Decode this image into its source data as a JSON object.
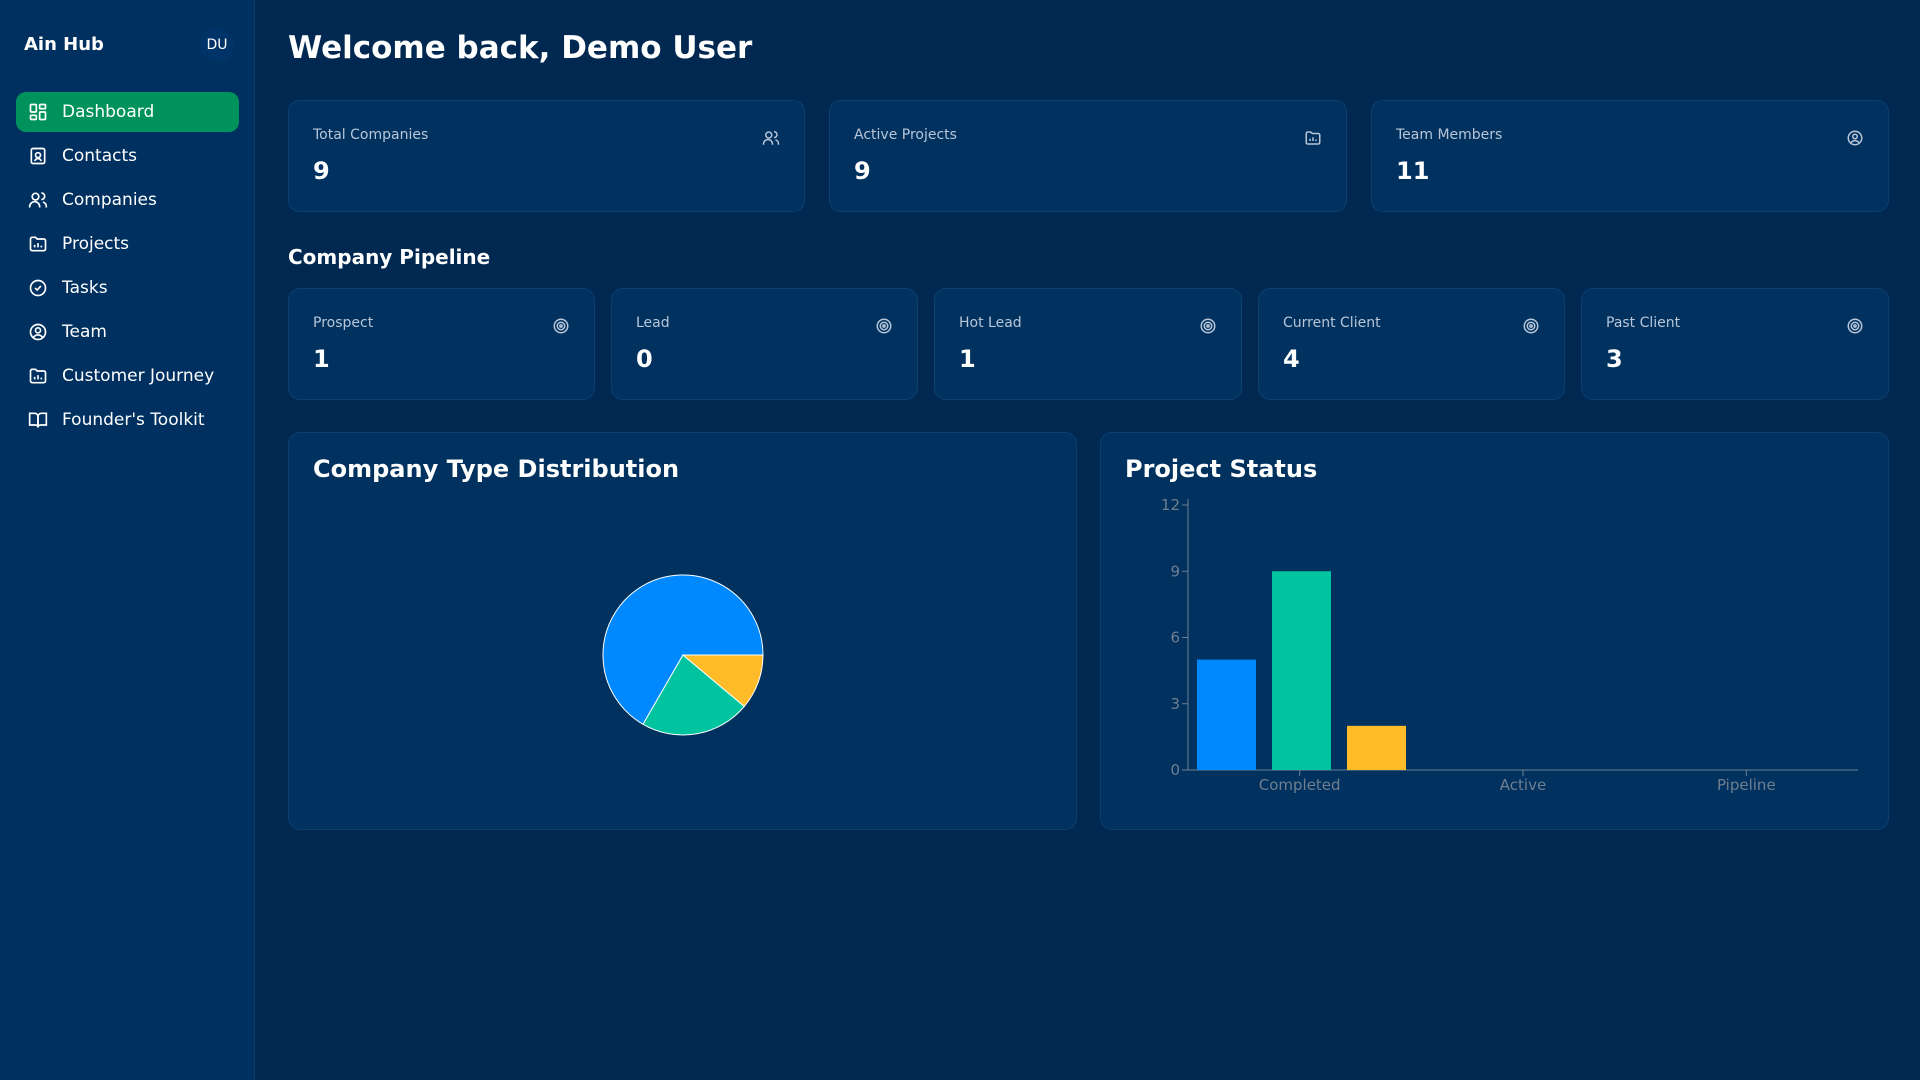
{
  "app": {
    "brand": "Ain Hub",
    "avatar_initials": "DU"
  },
  "sidebar": {
    "items": [
      {
        "label": "Dashboard",
        "icon": "dashboard-icon",
        "active": true
      },
      {
        "label": "Contacts",
        "icon": "contact-card-icon",
        "active": false
      },
      {
        "label": "Companies",
        "icon": "users-icon",
        "active": false
      },
      {
        "label": "Projects",
        "icon": "folder-chart-icon",
        "active": false
      },
      {
        "label": "Tasks",
        "icon": "check-circle-icon",
        "active": false
      },
      {
        "label": "Team",
        "icon": "user-circle-icon",
        "active": false
      },
      {
        "label": "Customer Journey",
        "icon": "folder-chart-icon",
        "active": false
      },
      {
        "label": "Founder's Toolkit",
        "icon": "book-open-icon",
        "active": false
      }
    ]
  },
  "header": {
    "welcome": "Welcome back, Demo User"
  },
  "stats": [
    {
      "label": "Total Companies",
      "value": "9",
      "icon": "users-icon"
    },
    {
      "label": "Active Projects",
      "value": "9",
      "icon": "folder-chart-icon"
    },
    {
      "label": "Team Members",
      "value": "11",
      "icon": "user-circle-icon"
    }
  ],
  "pipeline": {
    "title": "Company Pipeline",
    "stages": [
      {
        "label": "Prospect",
        "value": "1",
        "icon": "target-icon"
      },
      {
        "label": "Lead",
        "value": "0",
        "icon": "target-icon"
      },
      {
        "label": "Hot Lead",
        "value": "1",
        "icon": "target-icon"
      },
      {
        "label": "Current Client",
        "value": "4",
        "icon": "target-icon"
      },
      {
        "label": "Past Client",
        "value": "3",
        "icon": "target-icon"
      }
    ]
  },
  "colors": {
    "accent_green": "#00925c",
    "blue": "#0088fe",
    "teal": "#00c49f",
    "yellow": "#ffbb28"
  },
  "chart_data": [
    {
      "type": "pie",
      "title": "Company Type Distribution",
      "slices": [
        {
          "value": 6,
          "color": "#0088fe"
        },
        {
          "value": 2,
          "color": "#00c49f"
        },
        {
          "value": 1,
          "color": "#ffbb28"
        }
      ]
    },
    {
      "type": "bar",
      "title": "Project Status",
      "categories": [
        "Completed",
        "Active",
        "Pipeline"
      ],
      "values": [
        5,
        9,
        2
      ],
      "colors": [
        "#0088fe",
        "#00c49f",
        "#ffbb28"
      ],
      "yticks": [
        0,
        3,
        6,
        9,
        12
      ],
      "ylim": [
        0,
        12
      ],
      "grid": false
    }
  ]
}
